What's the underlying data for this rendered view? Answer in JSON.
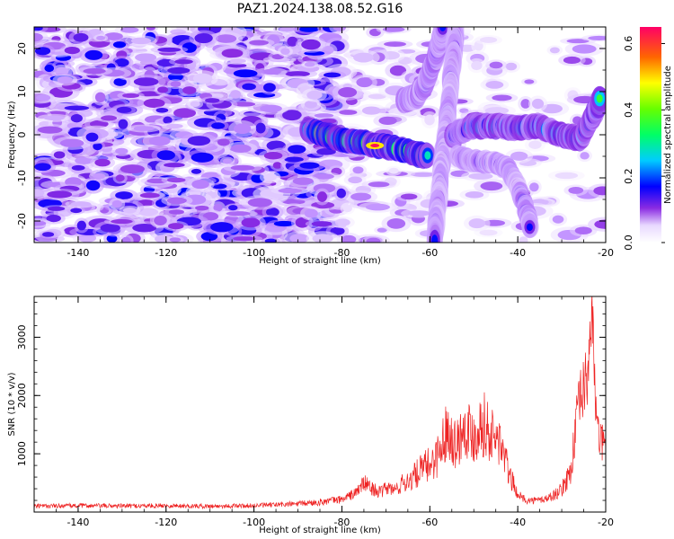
{
  "title": "PAZ1.2024.138.08.52.G16",
  "chart_data": [
    {
      "type": "heatmap",
      "xlabel": "Height of straight line (km)",
      "ylabel": "Frequency (Hz)",
      "xlim": [
        -150,
        -20
      ],
      "ylim": [
        -25,
        25
      ],
      "xticks": [
        "-140",
        "-120",
        "-100",
        "-80",
        "-60",
        "-40",
        "-20"
      ],
      "yticks": [
        "-20",
        "-10",
        "0",
        "10",
        "20"
      ],
      "colorbar": {
        "label": "Normalized spectral amplitude",
        "range": [
          0,
          0.65
        ],
        "ticks": [
          "0.0",
          "0.2",
          "0.4",
          "0.6"
        ],
        "colormap": "gist_rainbow_r"
      },
      "features": [
        {
          "name": "main-track",
          "points": [
            [
              -88,
              1
            ],
            [
              -82,
              -0.5
            ],
            [
              -77,
              -1.5
            ],
            [
              -72,
              -2.5
            ],
            [
              -68,
              -3
            ],
            [
              -63,
              -4.5
            ],
            [
              -60,
              -5
            ]
          ],
          "amplitude": 0.5,
          "width_hz": 1.8
        },
        {
          "name": "rising-branch",
          "points": [
            [
              -66,
              8
            ],
            [
              -63,
              9
            ],
            [
              -61,
              12
            ],
            [
              -59,
              17
            ],
            [
              -58,
              21
            ],
            [
              -57,
              25
            ]
          ],
          "amplitude": 0.25,
          "width_hz": 1.8
        },
        {
          "name": "descending-branch",
          "points": [
            [
              -54,
              25
            ],
            [
              -55,
              15
            ],
            [
              -56,
              5
            ],
            [
              -57,
              -5
            ],
            [
              -58,
              -15
            ],
            [
              -59,
              -25
            ]
          ],
          "amplitude": 0.2,
          "width_hz": 2.5
        },
        {
          "name": "upper-right-track",
          "points": [
            [
              -55,
              0
            ],
            [
              -50,
              2
            ],
            [
              -45,
              2
            ],
            [
              -40,
              1.5
            ],
            [
              -35,
              2
            ],
            [
              -30,
              0
            ],
            [
              -26,
              -1
            ],
            [
              -23,
              4
            ],
            [
              -21,
              9
            ]
          ],
          "amplitude": 0.35,
          "width_hz": 1.8
        },
        {
          "name": "lower-right-track",
          "points": [
            [
              -54,
              -5
            ],
            [
              -50,
              -6
            ],
            [
              -45,
              -6.5
            ],
            [
              -42,
              -8
            ],
            [
              -40,
              -12
            ],
            [
              -38,
              -18
            ],
            [
              -37,
              -22
            ]
          ],
          "amplitude": 0.22,
          "width_hz": 1.6
        }
      ]
    },
    {
      "type": "line",
      "xlabel": "Height of straight line (km)",
      "ylabel": "SNR (10 * v/v)",
      "xlim": [
        -150,
        -20
      ],
      "ylim": [
        0,
        3700
      ],
      "xticks": [
        "-140",
        "-120",
        "-100",
        "-80",
        "-60",
        "-40",
        "-20"
      ],
      "yticks": [
        "1000",
        "2000",
        "3000"
      ],
      "color": "#ee2222",
      "series": [
        {
          "x": [
            -150,
            -140,
            -130,
            -120,
            -110,
            -100,
            -90,
            -85,
            -80,
            -77,
            -75,
            -73,
            -71,
            -70,
            -68,
            -66,
            -64,
            -62,
            -60,
            -58,
            -56,
            -54,
            -52,
            -50,
            -48,
            -46,
            -44,
            -42,
            -40,
            -38,
            -36,
            -34,
            -32,
            -30,
            -28,
            -27,
            -26,
            -25,
            -24,
            -23.5,
            -23,
            -22.5,
            -22,
            -21,
            -20
          ],
          "y": [
            100,
            110,
            105,
            110,
            100,
            110,
            140,
            170,
            220,
            320,
            500,
            400,
            330,
            420,
            380,
            500,
            580,
            720,
            820,
            1000,
            1450,
            1150,
            1500,
            1300,
            1550,
            1300,
            1200,
            660,
            300,
            200,
            200,
            220,
            280,
            380,
            700,
            1300,
            1900,
            2100,
            2400,
            3200,
            3300,
            2300,
            1400,
            1200,
            1100
          ],
          "noise_amplitude": [
            40,
            40,
            40,
            40,
            40,
            40,
            50,
            60,
            70,
            100,
            150,
            120,
            110,
            130,
            120,
            180,
            220,
            280,
            320,
            400,
            500,
            450,
            550,
            500,
            600,
            500,
            450,
            250,
            80,
            60,
            60,
            70,
            90,
            130,
            250,
            450,
            500,
            550,
            600,
            500,
            500,
            600,
            400,
            350,
            300
          ]
        }
      ]
    }
  ]
}
